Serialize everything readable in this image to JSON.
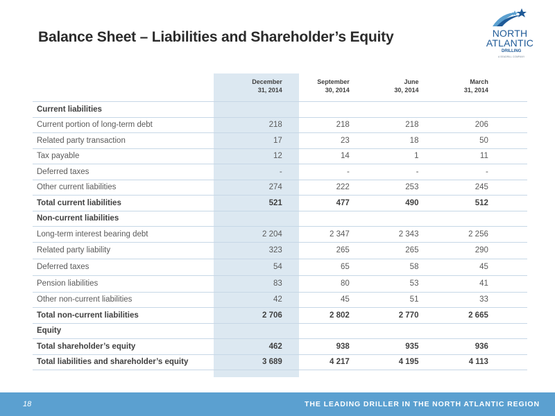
{
  "title": "Balance Sheet – Liabilities and Shareholder’s Equity",
  "logo": {
    "line1": "NORTH",
    "line2": "ATLANTIC",
    "line3": "DRILLING",
    "tagline": "A SEADRILL COMPANY"
  },
  "columns": [
    {
      "line1": "December",
      "line2": "31, 2014"
    },
    {
      "line1": "September",
      "line2": "30, 2014"
    },
    {
      "line1": "June",
      "line2": "30, 2014"
    },
    {
      "line1": "March",
      "line2": "31, 2014"
    }
  ],
  "rows": [
    {
      "label": "Current liabilities",
      "values": [
        "",
        "",
        "",
        ""
      ],
      "bold": true
    },
    {
      "label": "Current portion of long-term debt",
      "values": [
        "218",
        "218",
        "218",
        "206"
      ]
    },
    {
      "label": "Related party transaction",
      "values": [
        "17",
        "23",
        "18",
        "50"
      ]
    },
    {
      "label": "Tax payable",
      "values": [
        "12",
        "14",
        "1",
        "11"
      ]
    },
    {
      "label": "Deferred taxes",
      "values": [
        "-",
        "-",
        "-",
        "-"
      ]
    },
    {
      "label": "Other current liabilities",
      "values": [
        "274",
        "222",
        "253",
        "245"
      ]
    },
    {
      "label": "Total current liabilities",
      "values": [
        "521",
        "477",
        "490",
        "512"
      ],
      "bold": true
    },
    {
      "label": "Non-current liabilities",
      "values": [
        "",
        "",
        "",
        ""
      ],
      "bold": true
    },
    {
      "label": "Long-term interest bearing debt",
      "values": [
        "2 204",
        "2 347",
        "2 343",
        "2 256"
      ]
    },
    {
      "label": "Related party liability",
      "values": [
        "323",
        "265",
        "265",
        "290"
      ]
    },
    {
      "label": "Deferred taxes",
      "values": [
        "54",
        "65",
        "58",
        "45"
      ]
    },
    {
      "label": "Pension liabilities",
      "values": [
        "83",
        "80",
        "53",
        "41"
      ]
    },
    {
      "label": "Other non-current liabilities",
      "values": [
        "42",
        "45",
        "51",
        "33"
      ]
    },
    {
      "label": "Total non-current liabilities",
      "values": [
        "2 706",
        "2 802",
        "2 770",
        "2 665"
      ],
      "bold": true
    },
    {
      "label": "Equity",
      "values": [
        "",
        "",
        "",
        ""
      ],
      "bold": true
    },
    {
      "label": "Total shareholder’s equity",
      "values": [
        "462",
        "938",
        "935",
        "936"
      ],
      "bold": true
    },
    {
      "label": "Total liabilities and shareholder’s equity",
      "values": [
        "3 689",
        "4 217",
        "4 195",
        "4 113"
      ],
      "bold": true
    }
  ],
  "footer": {
    "page_number": "18",
    "tagline": "THE LEADING DRILLER IN THE NORTH ATLANTIC REGION"
  },
  "colors": {
    "title": "#2b2b2b",
    "highlight_column": "#dce8f1",
    "row_divider": "#c6d7e6",
    "footer_band": "#5ba0d0",
    "logo_blue": "#1f5a97"
  }
}
